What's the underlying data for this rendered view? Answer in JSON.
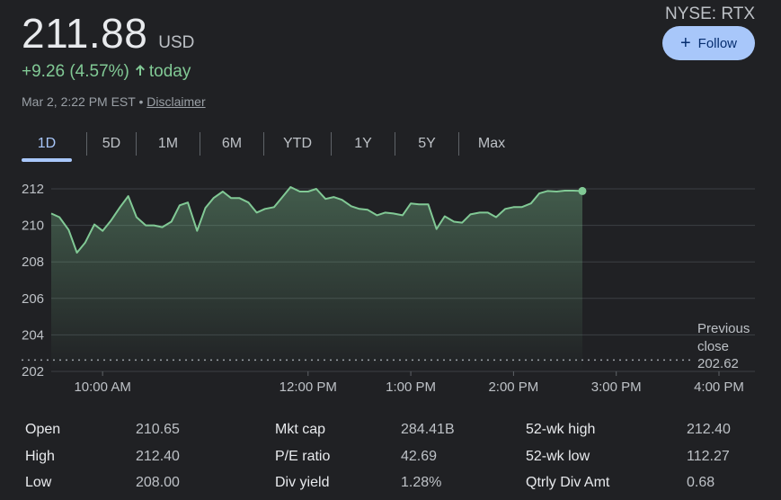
{
  "quote": {
    "price": "211.88",
    "currency": "USD",
    "change": "+9.26 (4.57%)",
    "change_word": "today",
    "timestamp": "Mar 2, 2:22 PM EST",
    "separator": "•",
    "disclaimer": "Disclaimer",
    "ticker": "NYSE: RTX",
    "follow_label": "Follow",
    "accent_up": "#81c995"
  },
  "tabs": [
    {
      "label": "1D",
      "active": true
    },
    {
      "label": "5D",
      "active": false
    },
    {
      "label": "1M",
      "active": false
    },
    {
      "label": "6M",
      "active": false
    },
    {
      "label": "YTD",
      "active": false
    },
    {
      "label": "1Y",
      "active": false
    },
    {
      "label": "5Y",
      "active": false
    },
    {
      "label": "Max",
      "active": false
    }
  ],
  "chart_data": {
    "type": "area",
    "y_ticks": [
      212,
      210,
      208,
      206,
      204,
      202
    ],
    "ylim": [
      202,
      212
    ],
    "x_ticks": [
      "10:00 AM",
      "12:00 PM",
      "1:00 PM",
      "2:00 PM",
      "3:00 PM",
      "4:00 PM"
    ],
    "x_tick_hours": [
      10,
      12,
      13,
      14,
      15,
      16
    ],
    "xlim_hours": [
      9.5,
      16
    ],
    "grid": true,
    "previous_close": {
      "label_line1": "Previous",
      "label_line2": "close",
      "value": "202.62",
      "y": 202.62
    },
    "series": [
      {
        "color": "#81c995",
        "x_hours": [
          9.5,
          9.58,
          9.67,
          9.75,
          9.83,
          9.92,
          10.0,
          10.08,
          10.17,
          10.25,
          10.33,
          10.42,
          10.5,
          10.58,
          10.67,
          10.75,
          10.83,
          10.92,
          11.0,
          11.08,
          11.17,
          11.25,
          11.33,
          11.42,
          11.5,
          11.58,
          11.67,
          11.75,
          11.83,
          11.92,
          12.0,
          12.08,
          12.17,
          12.25,
          12.33,
          12.42,
          12.5,
          12.58,
          12.67,
          12.75,
          12.83,
          12.92,
          13.0,
          13.08,
          13.17,
          13.25,
          13.33,
          13.42,
          13.5,
          13.58,
          13.67,
          13.75,
          13.83,
          13.92,
          14.0,
          14.08,
          14.17,
          14.25,
          14.33,
          14.42,
          14.5,
          14.58,
          14.67
        ],
        "values": [
          210.65,
          210.45,
          209.75,
          208.5,
          209.05,
          210.05,
          209.7,
          210.25,
          211.0,
          211.6,
          210.45,
          210.0,
          210.0,
          209.9,
          210.2,
          211.1,
          211.25,
          209.7,
          210.95,
          211.5,
          211.85,
          211.5,
          211.5,
          211.25,
          210.7,
          210.9,
          211.0,
          211.55,
          212.1,
          211.85,
          211.85,
          212.0,
          211.45,
          211.55,
          211.4,
          211.05,
          210.9,
          210.85,
          210.55,
          210.7,
          210.65,
          210.55,
          211.2,
          211.15,
          211.15,
          209.8,
          210.5,
          210.2,
          210.15,
          210.6,
          210.7,
          210.7,
          210.45,
          210.9,
          211.0,
          211.0,
          211.2,
          211.75,
          211.88,
          211.85,
          211.9,
          211.9,
          211.88
        ]
      }
    ]
  },
  "stats": {
    "rows": [
      [
        {
          "label": "Open",
          "value": "210.65"
        },
        {
          "label": "Mkt cap",
          "value": "284.41B"
        },
        {
          "label": "52-wk high",
          "value": "212.40"
        }
      ],
      [
        {
          "label": "High",
          "value": "212.40"
        },
        {
          "label": "P/E ratio",
          "value": "42.69"
        },
        {
          "label": "52-wk low",
          "value": "112.27"
        }
      ],
      [
        {
          "label": "Low",
          "value": "208.00"
        },
        {
          "label": "Div yield",
          "value": "1.28%"
        },
        {
          "label": "Qtrly Div Amt",
          "value": "0.68"
        }
      ]
    ]
  }
}
